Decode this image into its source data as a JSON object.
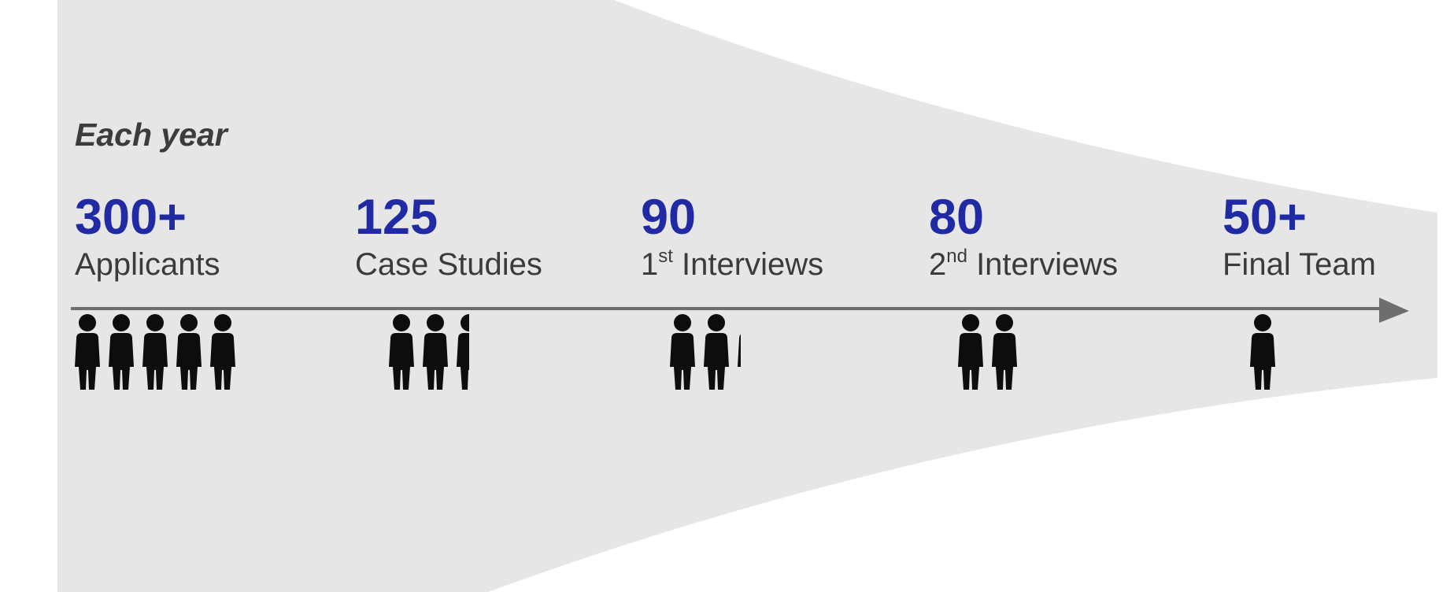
{
  "caption": "Each year",
  "stages": [
    {
      "value": "300+",
      "label": "Applicants",
      "sup": "",
      "label_rest": "",
      "people_count": 5
    },
    {
      "value": "125",
      "label": "Case Studies",
      "sup": "",
      "label_rest": "",
      "people_count": 2.5
    },
    {
      "value": "90",
      "label": "1",
      "sup": "st",
      "label_rest": " Interviews",
      "people_count": 2.2
    },
    {
      "value": "80",
      "label": "2",
      "sup": "nd",
      "label_rest": " Interviews",
      "people_count": 2
    },
    {
      "value": "50+",
      "label": "Final Team",
      "sup": "",
      "label_rest": "",
      "people_count": 1
    }
  ],
  "colors": {
    "funnel": "#e6e6e6",
    "value": "#1f2aa4",
    "label": "#3b3b3b",
    "arrow": "#6e6e6e",
    "person": "#0d0d0d"
  },
  "icons": {
    "arrow": "arrow-right-icon",
    "person": "person-icon"
  }
}
